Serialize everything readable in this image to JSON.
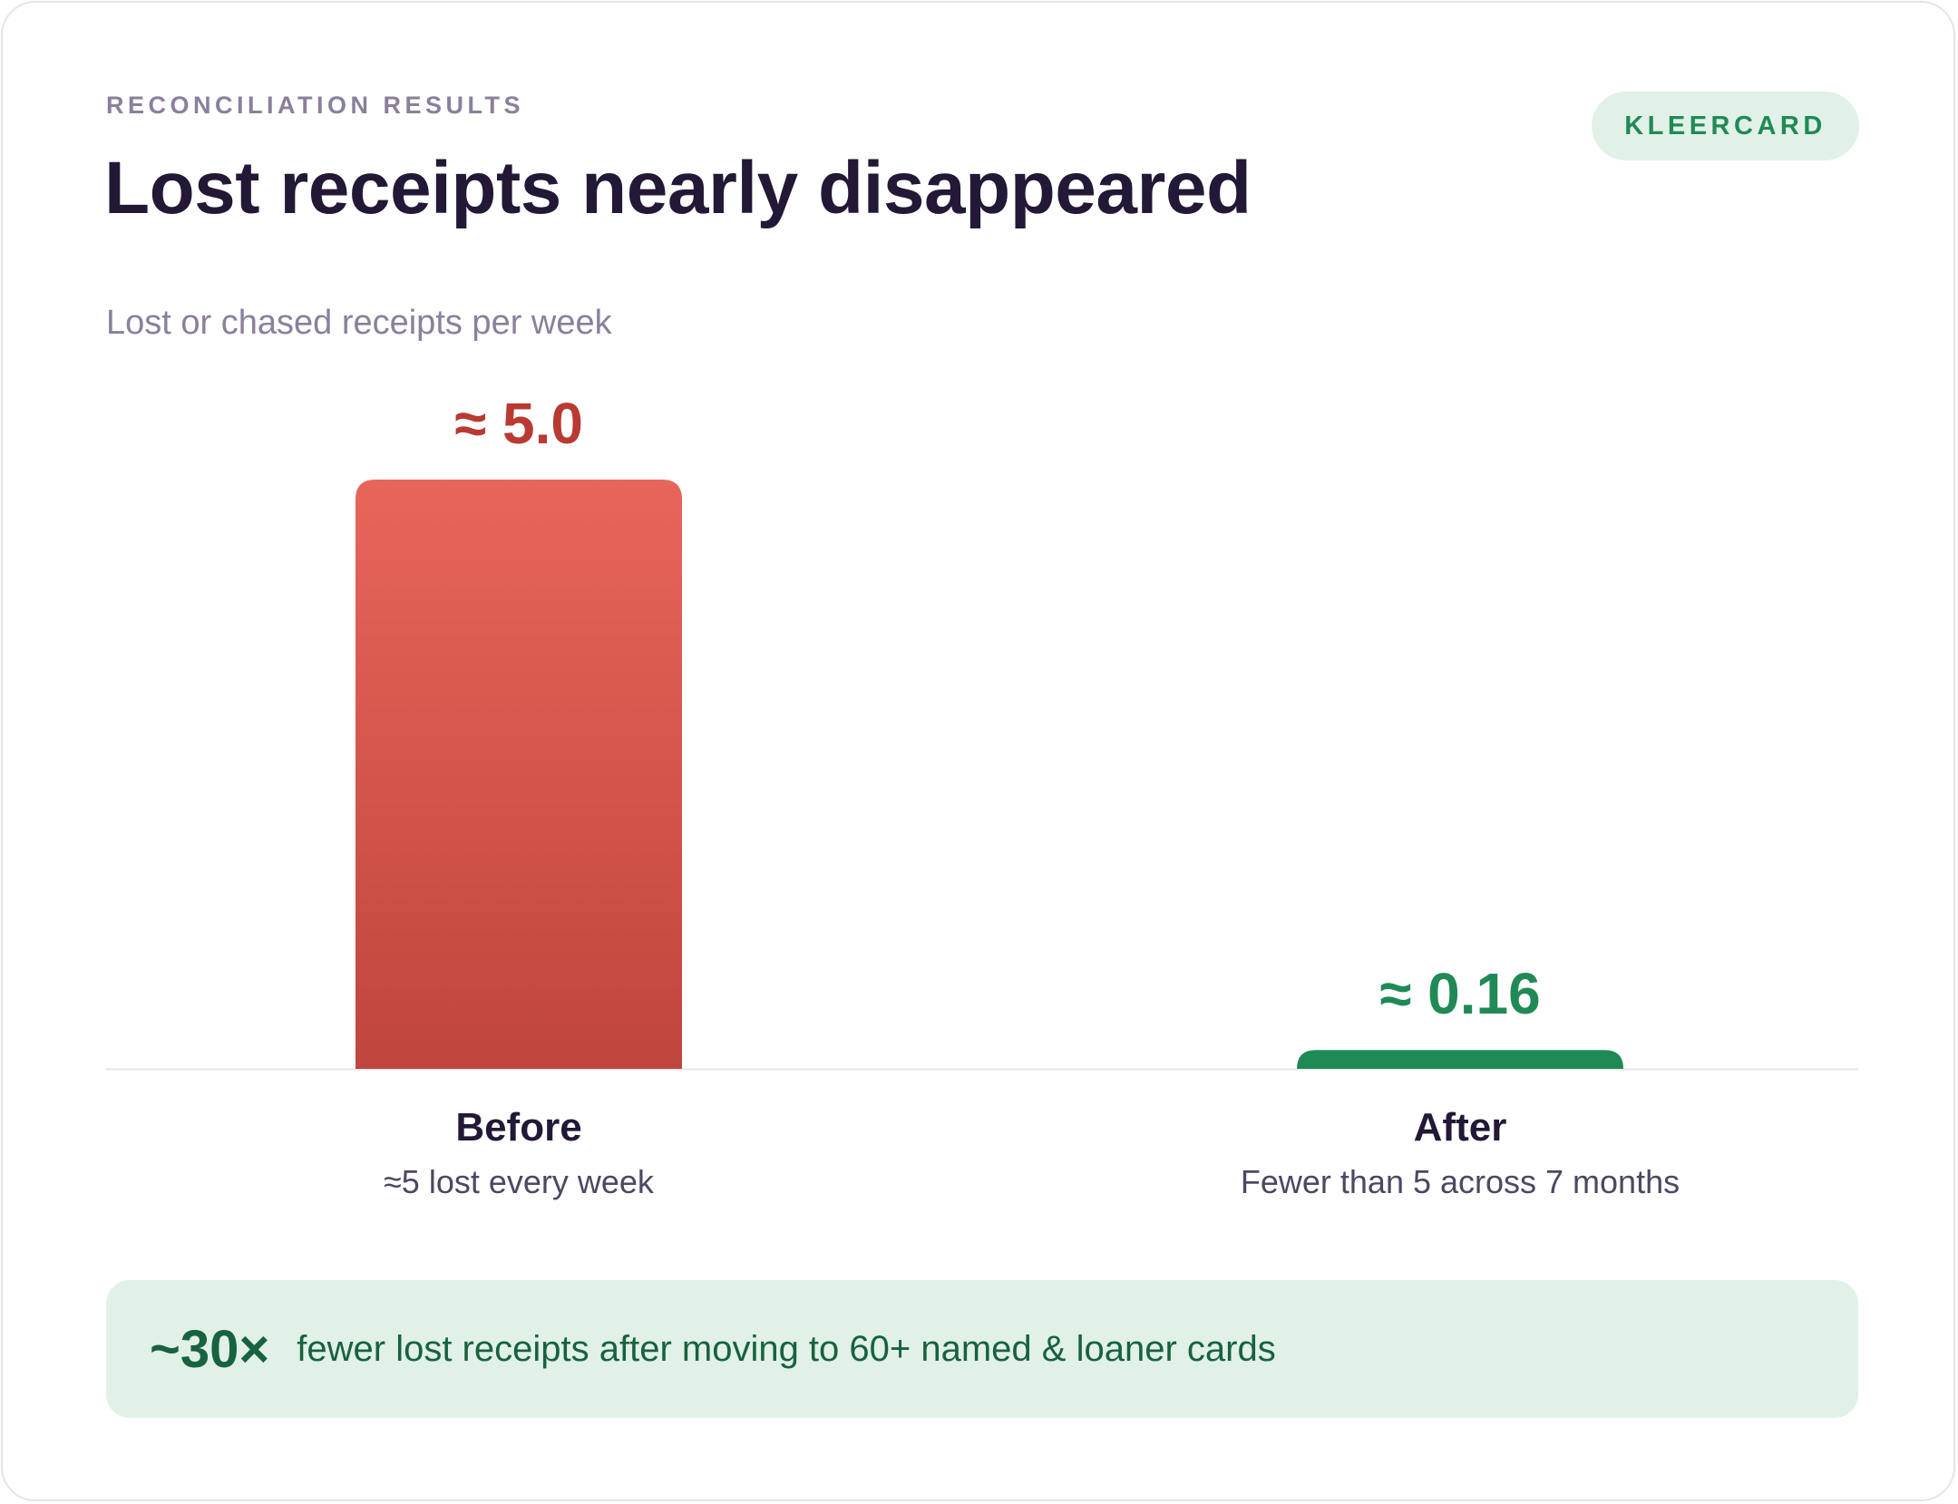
{
  "header": {
    "eyebrow": "RECONCILIATION RESULTS",
    "title": "Lost receipts nearly disappeared",
    "badge": "KLEERCARD"
  },
  "chart_data": {
    "type": "bar",
    "subtitle": "Lost or chased receipts per week",
    "categories": [
      "Before",
      "After"
    ],
    "values": [
      5.0,
      0.16
    ],
    "value_labels": [
      "≈ 5.0",
      "≈ 0.16"
    ],
    "notes": [
      "≈5 lost every week",
      "Fewer than 5 across 7 months"
    ],
    "colors": [
      "#e8655a",
      "#1f8a56"
    ],
    "value_label_colors": [
      "#b83a33",
      "#1f8a56"
    ],
    "ylim": [
      0,
      5.0
    ],
    "grid": false
  },
  "callout": {
    "highlight": "~30×",
    "text": "fewer lost receipts after moving to 60+ named & loaner cards"
  },
  "colors": {
    "accent_green": "#1f8a56",
    "accent_red": "#c2453d",
    "badge_bg": "#e1f1e7"
  }
}
